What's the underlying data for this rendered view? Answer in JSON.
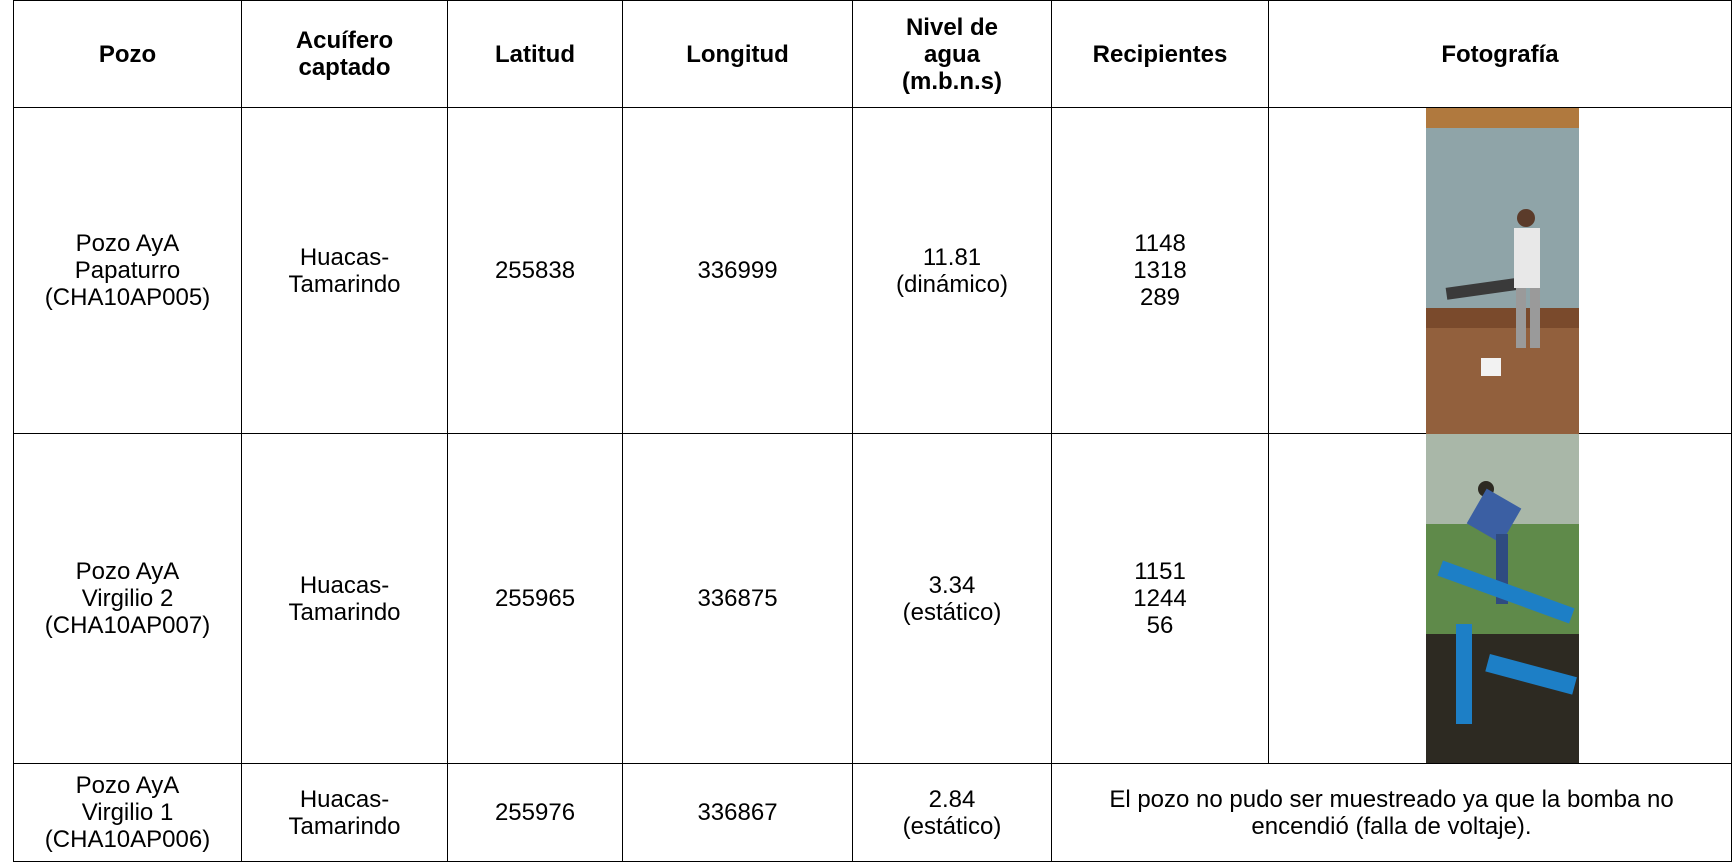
{
  "table": {
    "header": [
      "Pozo",
      "Acuífero\ncaptado",
      "Latitud",
      "Longitud",
      "Nivel de\nagua\n(m.b.n.s)",
      "Recipientes",
      "Fotografía"
    ],
    "rows": [
      [
        "Pozo AyA\nPapaturro\n(CHA10AP005)",
        "Huacas-\nTamarindo",
        "255838",
        "336999",
        "11.81\n(dinámico)",
        [
          "1148",
          "1318",
          "289"
        ]
      ],
      [
        "Pozo AyA\nVirgilio 2\n(CHA10AP007)",
        "Huacas-\nTamarindo",
        "255965",
        "336875",
        "3.34\n(estático)",
        [
          "1151",
          "1244",
          "56"
        ]
      ],
      [
        "Pozo AyA\nVirgilio 1\n(CHA10AP006)",
        "Huacas-\nTamarindo",
        "255976",
        "336867",
        "2.84\n(estático)",
        "El pozo no pudo ser muestreado ya que la bomba no encendió (falla de voltaje)."
      ]
    ]
  }
}
